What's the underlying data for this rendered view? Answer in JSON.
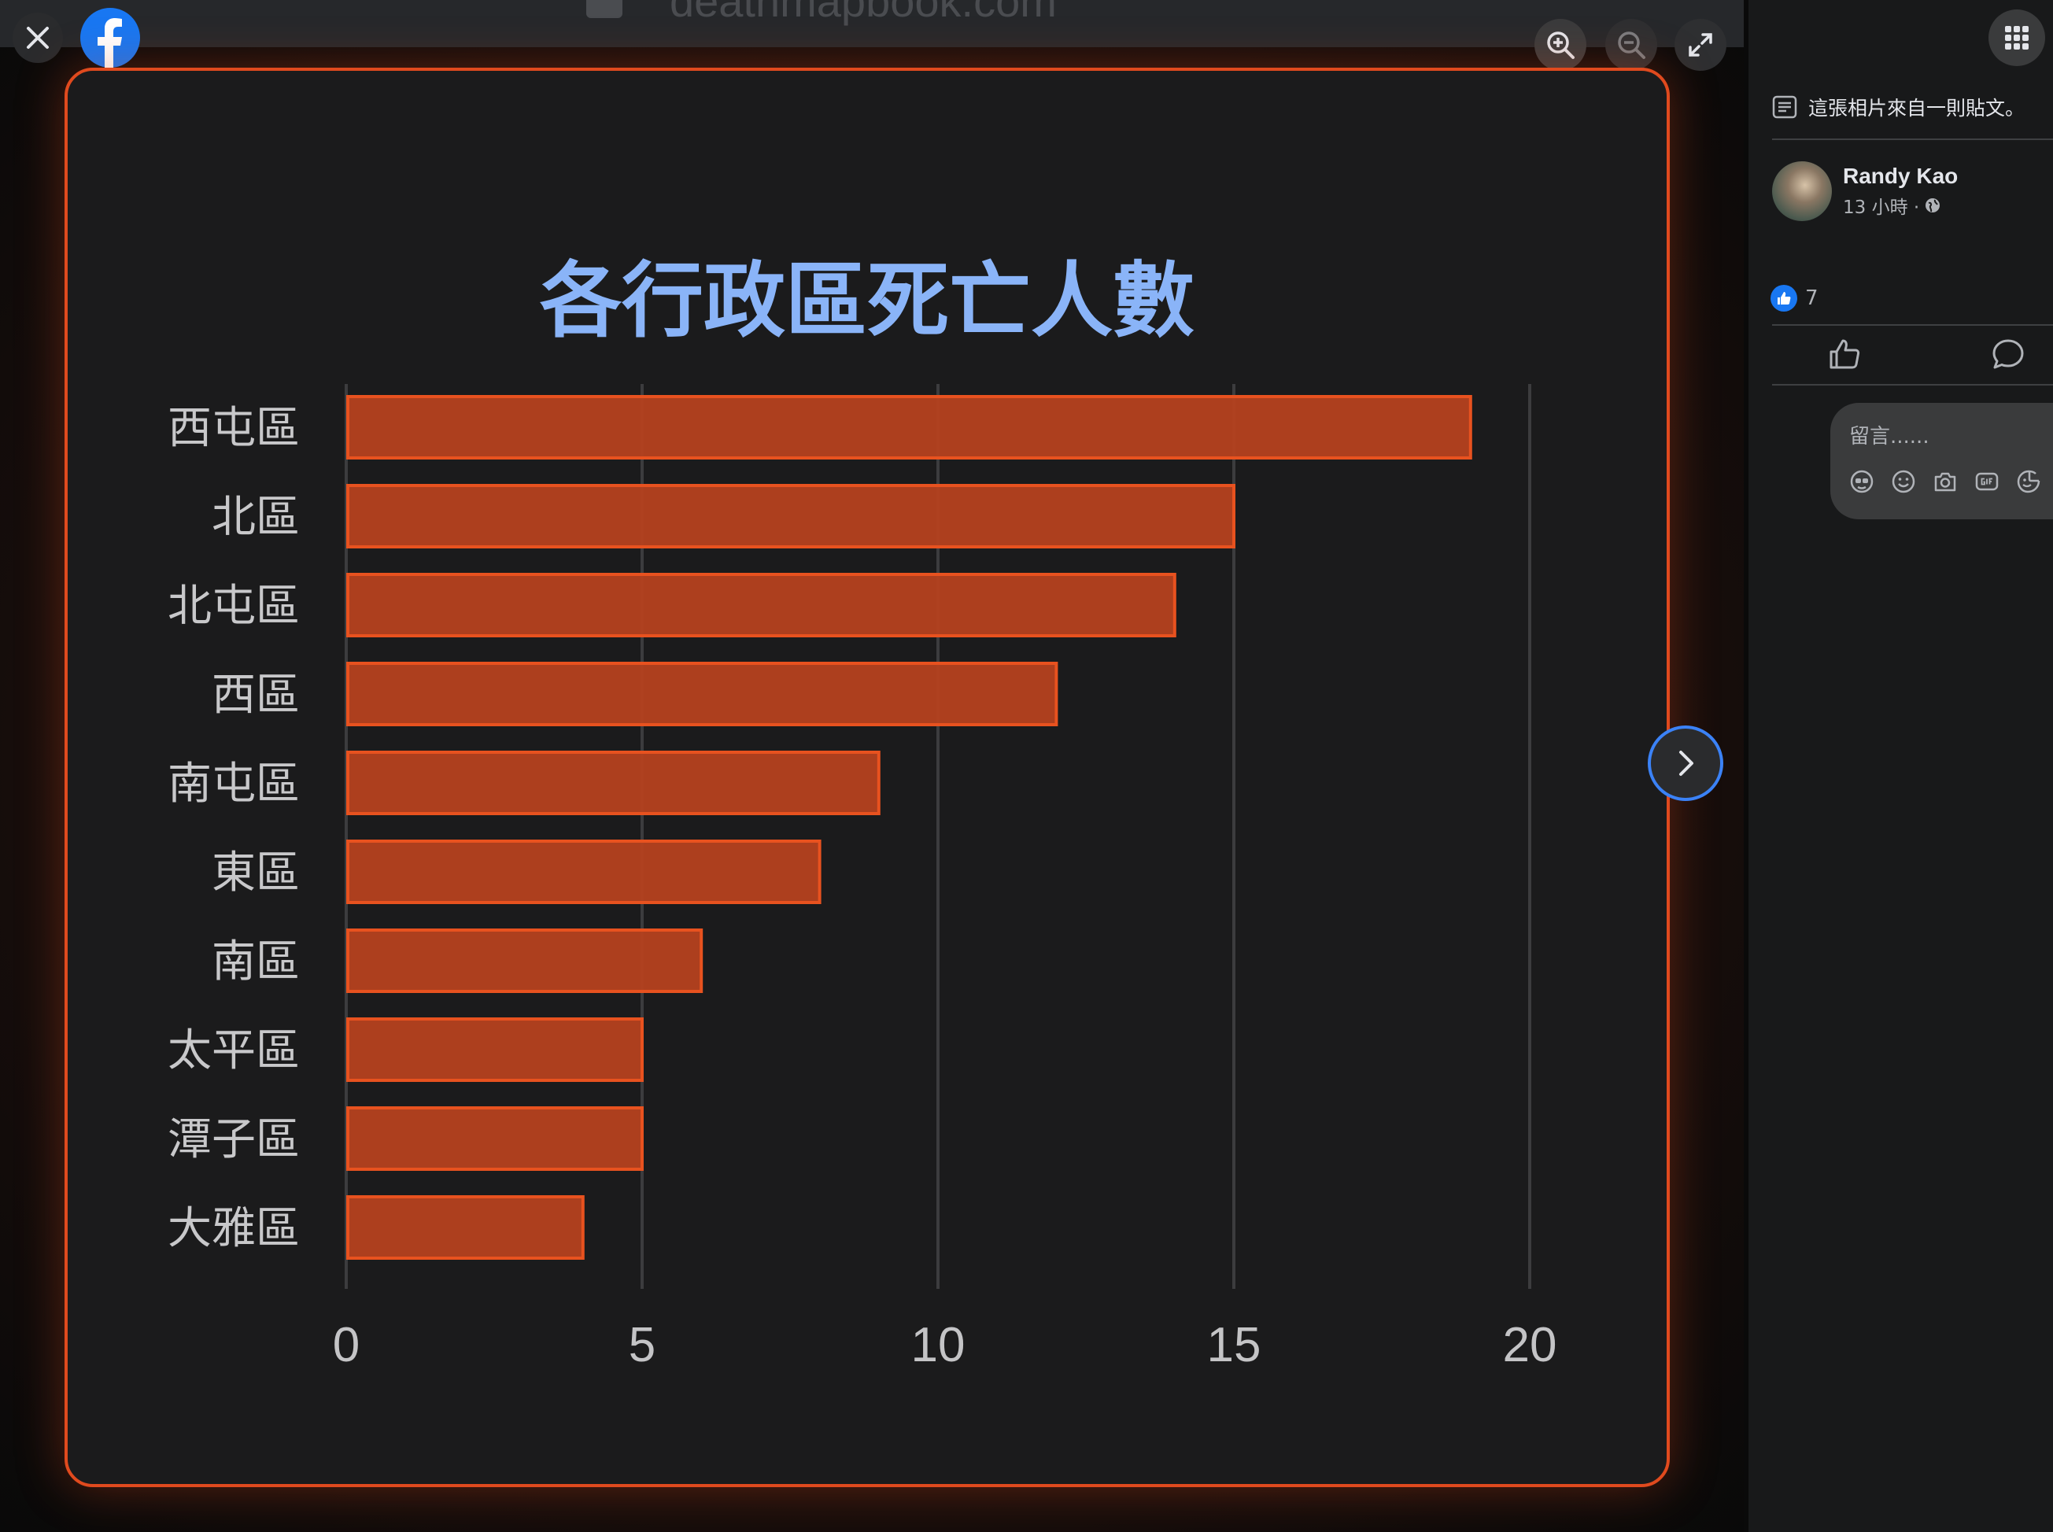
{
  "viewer": {
    "url_text": "deathmapbook.com",
    "icons": [
      "close-icon",
      "facebook-logo",
      "zoom-in-icon",
      "zoom-out-icon",
      "fullscreen-icon",
      "chevron-right-icon"
    ]
  },
  "chart_data": {
    "type": "bar",
    "orientation": "horizontal",
    "title": "各行政區死亡人數",
    "categories": [
      "西屯區",
      "北區",
      "北屯區",
      "西區",
      "南屯區",
      "東區",
      "南區",
      "太平區",
      "潭子區",
      "大雅區"
    ],
    "values": [
      19,
      15,
      14,
      12,
      9,
      8,
      6,
      5,
      5,
      4
    ],
    "xlim": [
      0,
      20
    ],
    "xticks": [
      "0",
      "5",
      "10",
      "15",
      "20"
    ],
    "grid": true,
    "colors": {
      "bar": "#b8421e",
      "bar_border": "#e8521f",
      "title": "#8ab4f8",
      "card_border": "#e04a1e"
    }
  },
  "sidebar": {
    "post_source_text": "這張相片來自一則貼文。",
    "author": {
      "name": "Randy Kao",
      "time": "13 小時 ·"
    },
    "reaction_count": "7",
    "comment_placeholder": "留言......",
    "comment_tools": [
      "avatar-sticker-icon",
      "emoji-icon",
      "camera-icon",
      "gif-icon",
      "sticker-icon"
    ]
  }
}
